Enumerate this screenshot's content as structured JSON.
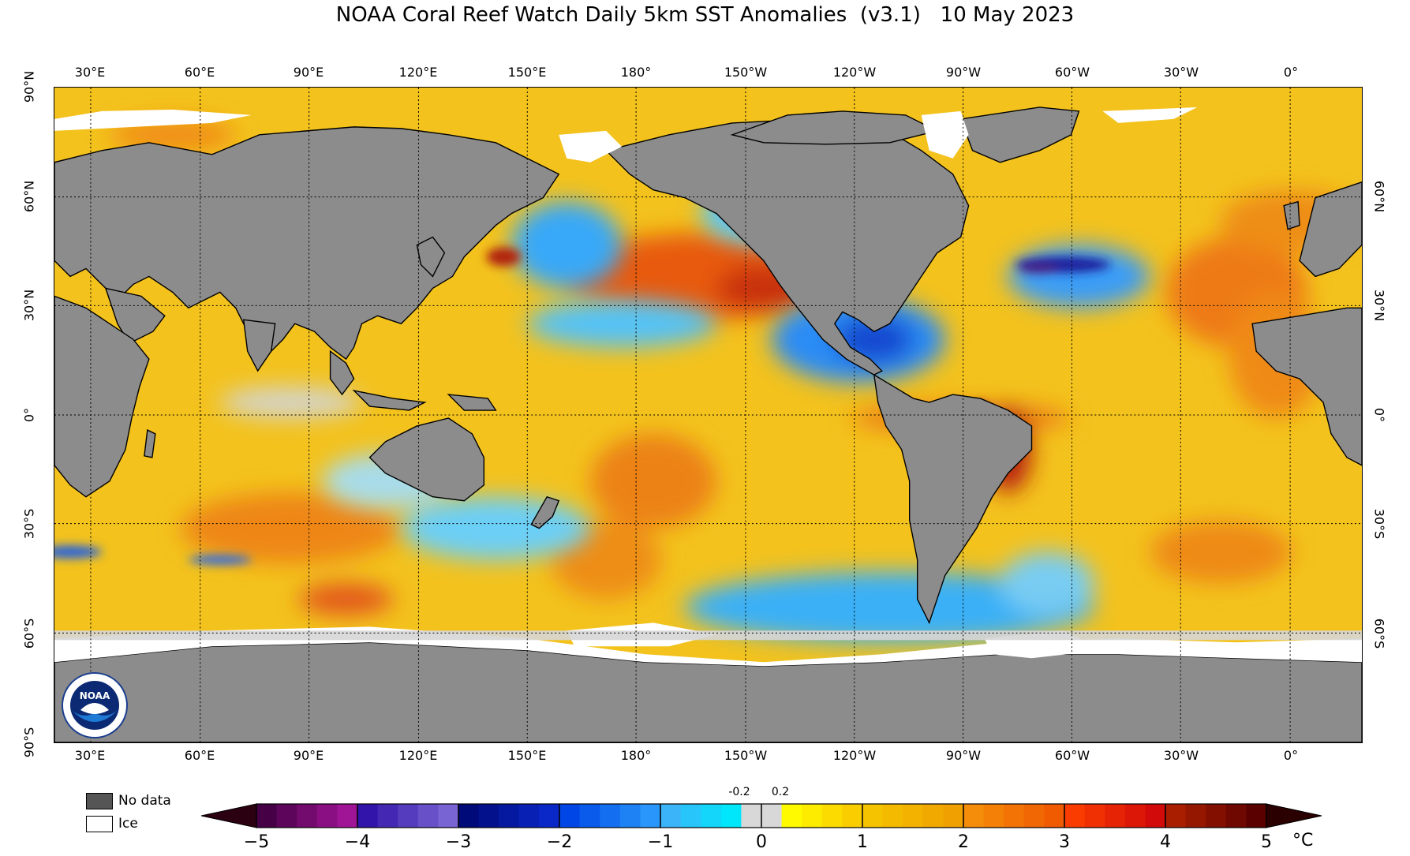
{
  "title": "NOAA Coral Reef Watch Daily 5km SST Anomalies  (v3.1)   10 May 2023",
  "lon_labels": [
    "30°E",
    "60°E",
    "90°E",
    "120°E",
    "150°E",
    "180°",
    "150°W",
    "120°W",
    "90°W",
    "60°W",
    "30°W",
    "0°"
  ],
  "lat_labels_left": [
    "90°N",
    "60°N",
    "30°N",
    "0°",
    "30°S",
    "60°S",
    "90°S"
  ],
  "lat_labels_right": [
    "60°N",
    "30°N",
    "0°",
    "30°S",
    "60°S"
  ],
  "legend": {
    "no_data": "No data",
    "ice": "Ice"
  },
  "colorbar": {
    "labels": [
      "−5",
      "−4",
      "−3",
      "−2",
      "−1",
      "0",
      "1",
      "2",
      "3",
      "4",
      "5"
    ],
    "small_labels": [
      "-0.2",
      "0.2"
    ],
    "unit": "°C"
  },
  "colors": {
    "land": "#8c8c8c",
    "ice": "#ffffff",
    "neutral": "#d8d8d8",
    "no_data": "#555555"
  },
  "logo_text": "NOAA"
}
